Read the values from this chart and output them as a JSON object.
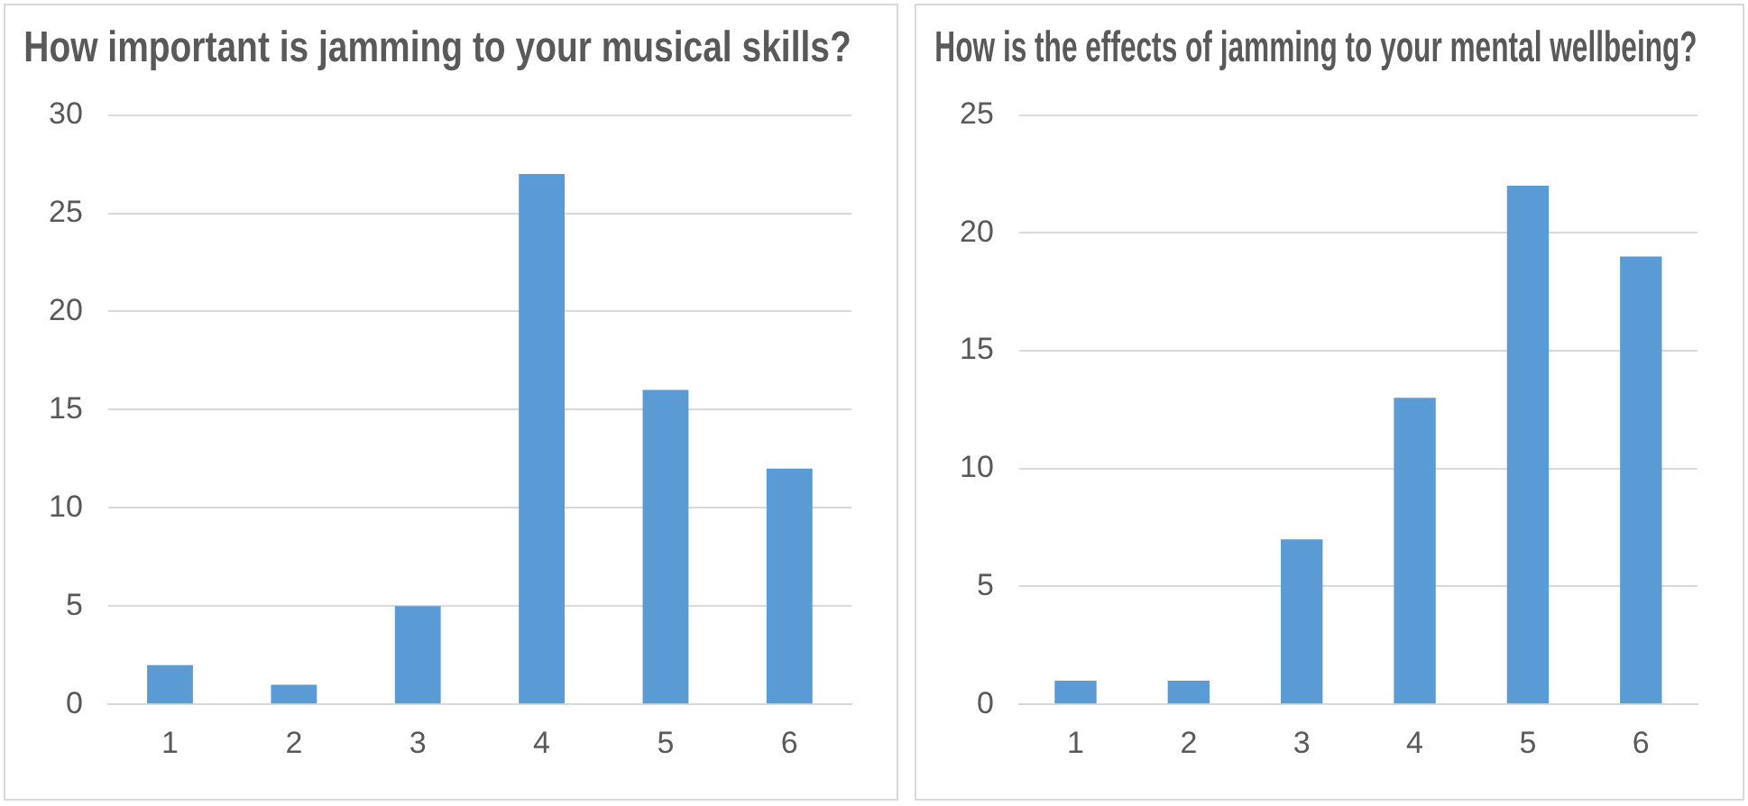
{
  "chart_data": [
    {
      "type": "bar",
      "title": "How important is jamming to your musical skills?",
      "categories": [
        "1",
        "2",
        "3",
        "4",
        "5",
        "6"
      ],
      "values": [
        2,
        1,
        5,
        27,
        16,
        12
      ],
      "color": "#5b9bd5",
      "ylim": [
        0,
        30
      ],
      "yticks": [
        0,
        5,
        10,
        15,
        20,
        25,
        30
      ],
      "grid": "y"
    },
    {
      "type": "bar",
      "title": "How is the effects of jamming to your mental wellbeing?",
      "categories": [
        "1",
        "2",
        "3",
        "4",
        "5",
        "6"
      ],
      "values": [
        1,
        1,
        7,
        13,
        22,
        19
      ],
      "color": "#5b9bd5",
      "ylim": [
        0,
        25
      ],
      "yticks": [
        0,
        5,
        10,
        15,
        20,
        25
      ],
      "grid": "y"
    }
  ]
}
